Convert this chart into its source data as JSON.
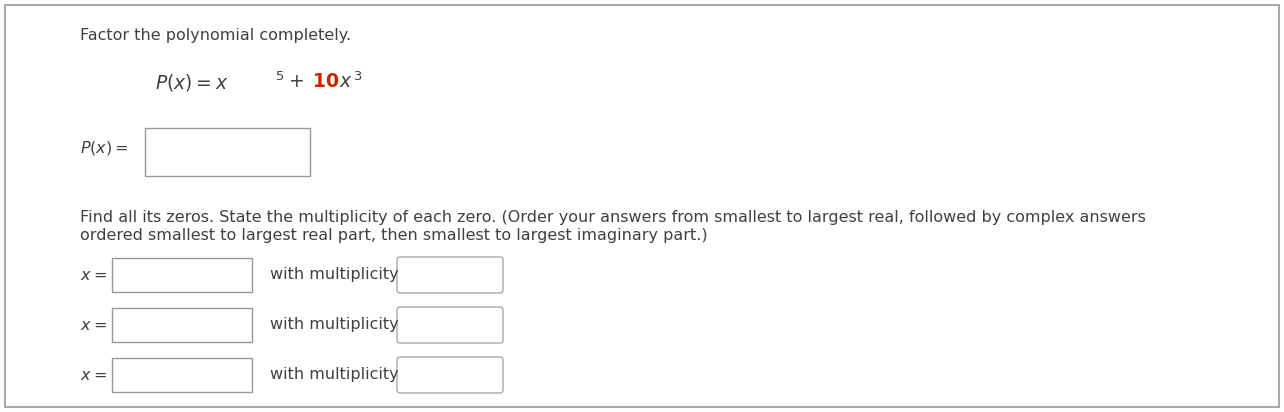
{
  "background_color": "#ffffff",
  "text_color": "#404040",
  "red_color": "#cc2200",
  "title_text": "Factor the polynomial completely.",
  "find_zeros_line1": "Find all its zeros. State the multiplicity of each zero. (Order your answers from smallest to largest real, followed by complex answers",
  "find_zeros_line2": "ordered smallest to largest real part, then smallest to largest imaginary part.)",
  "with_multiplicity": "with multiplicity",
  "font_size": 11.5,
  "eq_font_size": 13.5,
  "border_color": "#aaaaaa",
  "box_edge_color": "#999999",
  "mult_box_edge_color": "#aaaaaa"
}
